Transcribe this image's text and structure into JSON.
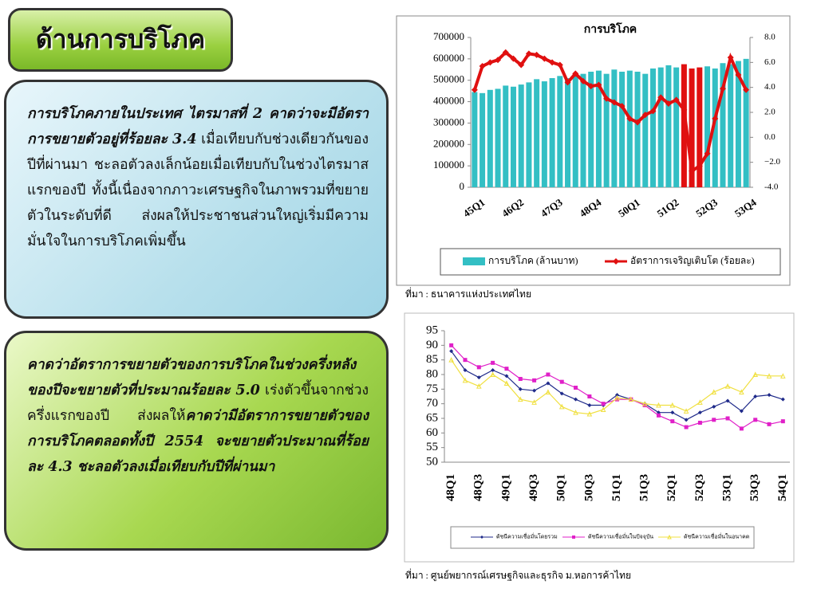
{
  "title": "ด้านการบริโภค",
  "boxes": [
    {
      "parts": [
        {
          "text": "การบริโภคภายในประเทศ ไตรมาสที่ 2  คาดว่าจะมีอัตราการขยายตัวอยู่ที่ร้อยละ  3.4",
          "emphasis": true
        },
        {
          "text": "  เมื่อเทียบกับช่วงเดียวกันของปีที่ผ่านมา ชะลอตัวลงเล็กน้อยเมื่อเทียบกับในช่วงไตรมาสแรกของปี ทั้งนี้เนื่องจากภาวะเศรษฐกิจในภาพรวมที่ขยายตัวในระดับที่ดี ส่งผลให้ประชาชนส่วนใหญ่เริ่มมีความมั่นใจในการบริโภคเพิ่มขึ้น",
          "emphasis": false
        }
      ]
    },
    {
      "parts": [
        {
          "text": "คาดว่าอัตราการขยายตัวของการบริโภคในช่วงครึ่งหลังของปีจะขยายตัวที่ประมาณร้อยละ 5.0",
          "emphasis": true
        },
        {
          "text": " เร่งตัวขึ้นจากช่วงครึ่งแรกของปี ส่งผลให้",
          "emphasis": false
        },
        {
          "text": "คาดว่ามีอัตราการขยายตัวของการบริโภคตลอดทั้งปี 2554 จะขยายตัวประมาณที่ร้อยละ 4.3   ชะลอตัวลงเมื่อเทียบกับปีที่ผ่านมา",
          "emphasis": true
        }
      ]
    }
  ],
  "sources": [
    "ที่มา : ธนาคารแห่งประเทศไทย",
    "ที่มา : ศูนย์พยากรณ์เศรษฐกิจและธุรกิจ ม.หอการค้าไทย"
  ],
  "chart_data": [
    {
      "type": "bar",
      "title": "การบริโภค",
      "categories": [
        "45Q1",
        null,
        null,
        null,
        null,
        "46Q2",
        null,
        null,
        null,
        null,
        "47Q3",
        null,
        null,
        null,
        null,
        "48Q4",
        null,
        null,
        null,
        null,
        "50Q1",
        null,
        null,
        null,
        null,
        "51Q2",
        null,
        null,
        null,
        null,
        "52Q3",
        null,
        null,
        null,
        null,
        "53Q4"
      ],
      "series": [
        {
          "name": "การบริโภค (ล้านบาท)",
          "type": "bar",
          "color": "#33bfc4",
          "colors": [
            "#33bfc4",
            "#33bfc4",
            "#33bfc4",
            "#33bfc4",
            "#33bfc4",
            "#33bfc4",
            "#33bfc4",
            "#33bfc4",
            "#33bfc4",
            "#33bfc4",
            "#33bfc4",
            "#33bfc4",
            "#33bfc4",
            "#33bfc4",
            "#33bfc4",
            "#33bfc4",
            "#33bfc4",
            "#33bfc4",
            "#33bfc4",
            "#33bfc4",
            "#33bfc4",
            "#33bfc4",
            "#33bfc4",
            "#33bfc4",
            "#33bfc4",
            "#33bfc4",
            "#33bfc4",
            "#e01010",
            "#e01010",
            "#e01010",
            "#33bfc4",
            "#33bfc4",
            "#33bfc4",
            "#33bfc4",
            "#33bfc4",
            "#33bfc4"
          ],
          "values": [
            445000,
            440000,
            455000,
            460000,
            475000,
            470000,
            480000,
            490000,
            505000,
            495000,
            510000,
            520000,
            510000,
            530000,
            530000,
            540000,
            545000,
            530000,
            550000,
            540000,
            545000,
            540000,
            530000,
            555000,
            560000,
            570000,
            560000,
            575000,
            555000,
            560000,
            565000,
            555000,
            580000,
            575000,
            590000,
            600000
          ]
        },
        {
          "name": "อัตราการเจริญเติบโต (ร้อยละ)",
          "type": "line",
          "axis": "y2",
          "color": "#e01010",
          "marker": "diamond",
          "values": [
            3.8,
            5.7,
            6.0,
            6.2,
            6.8,
            6.3,
            5.8,
            6.7,
            6.6,
            6.3,
            6.0,
            5.8,
            4.4,
            5.1,
            4.5,
            4.1,
            4.2,
            3.1,
            2.8,
            2.5,
            1.5,
            1.2,
            1.8,
            2.1,
            3.2,
            2.7,
            3.0,
            2.2,
            -2.7,
            -2.3,
            -1.3,
            1.5,
            3.9,
            6.4,
            5.0,
            3.8
          ]
        }
      ],
      "ylim": [
        0,
        700000
      ],
      "yticks": [
        0,
        100000,
        200000,
        300000,
        400000,
        500000,
        600000,
        700000
      ],
      "y2lim": [
        -4,
        8
      ],
      "y2ticks": [
        {
          "value": -4,
          "label": "-4.0"
        },
        {
          "value": -2,
          "label": "−2.0"
        },
        {
          "value": 0,
          "label": "0.0"
        },
        {
          "value": 2,
          "label": "2.0"
        },
        {
          "value": 4,
          "label": "4.0"
        },
        {
          "value": 6,
          "label": "6.0"
        },
        {
          "value": 8,
          "label": "8.0"
        }
      ],
      "grid": false
    },
    {
      "type": "line",
      "categories": [
        "48Q1",
        null,
        "48Q3",
        null,
        "49Q1",
        null,
        "49Q3",
        null,
        "50Q1",
        null,
        "50Q3",
        null,
        "51Q1",
        null,
        "51Q3",
        null,
        "52Q1",
        null,
        "52Q3",
        null,
        "53Q1",
        null,
        "53Q3",
        null,
        "54Q1"
      ],
      "series": [
        {
          "name": "ดัชนีความเชื่อมั่นโดยรวม",
          "color": "#1f2a8a",
          "marker": "diamond",
          "values": [
            88,
            81.5,
            79,
            81.5,
            79.5,
            75,
            74.5,
            77,
            73.5,
            71.5,
            69.5,
            69.5,
            73,
            71.5,
            70,
            67,
            67,
            64.5,
            67,
            69,
            71,
            67.5,
            72.5,
            73,
            71.5
          ]
        },
        {
          "name": "ดัชนีความเชื่อมั่นในปัจจุบัน",
          "color": "#e020c8",
          "marker": "square",
          "values": [
            90,
            85,
            82.5,
            84,
            82,
            78.5,
            78,
            80,
            77.5,
            75.5,
            72.5,
            70,
            71.5,
            71.5,
            69.5,
            66,
            64,
            62,
            63.5,
            64.5,
            65,
            61.5,
            64.5,
            63,
            64
          ]
        },
        {
          "name": "ดัชนีความเชื่อมั่นในอนาคต",
          "color": "#f0e040",
          "marker": "triangle",
          "values": [
            85,
            78,
            76,
            80,
            77,
            71.5,
            70.5,
            74,
            69,
            67,
            66.5,
            68,
            72,
            71.5,
            70,
            69.5,
            69.5,
            67.5,
            70.5,
            74,
            76,
            74,
            80,
            79.5,
            79.5
          ]
        }
      ],
      "ylim": [
        50,
        95
      ],
      "yticks": [
        50,
        55,
        60,
        65,
        70,
        75,
        80,
        85,
        90,
        95
      ],
      "grid": false
    }
  ]
}
